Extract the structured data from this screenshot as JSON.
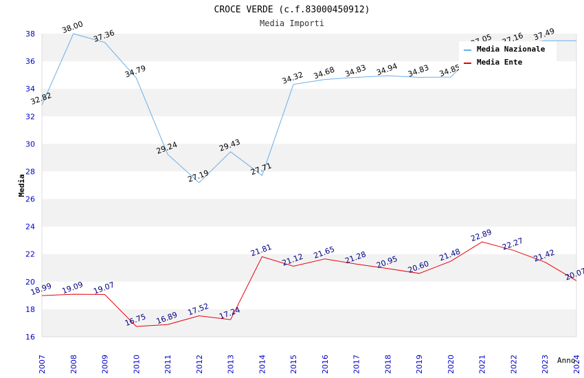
{
  "chart_data": {
    "type": "line",
    "title": "CROCE VERDE (c.f.83000450912)",
    "subtitle": "Media Importi",
    "xlabel": "Anno",
    "ylabel": "Media",
    "ylim": [
      16,
      38
    ],
    "yticks": [
      "16",
      "18",
      "20",
      "22",
      "24",
      "26",
      "28",
      "30",
      "32",
      "34",
      "36",
      "38"
    ],
    "x": [
      "2007",
      "2008",
      "2009",
      "2010",
      "2011",
      "2012",
      "2013",
      "2014",
      "2015",
      "2016",
      "2017",
      "2018",
      "2019",
      "2020",
      "2021",
      "2022",
      "2023",
      "2024"
    ],
    "grid": "horizontal alternating bands",
    "legend_position": "top-right",
    "series": [
      {
        "name": "Media Nazionale",
        "color": "#6aaee8",
        "label_color": "#000000",
        "values": [
          32.82,
          38.0,
          37.36,
          34.79,
          29.24,
          27.19,
          29.43,
          27.71,
          34.32,
          34.68,
          34.83,
          34.94,
          34.83,
          34.85,
          37.05,
          37.16,
          37.49,
          37.49
        ],
        "labels": [
          "32.82",
          "38.00",
          "37.36",
          "34.79",
          "29.24",
          "27.19",
          "29.43",
          "27.71",
          "34.32",
          "34.68",
          "34.83",
          "34.94",
          "34.83",
          "34.85",
          "37.05",
          "37.16",
          "37.49",
          ""
        ]
      },
      {
        "name": "Media Ente",
        "color": "#e8000b",
        "label_color": "#000080",
        "values": [
          18.99,
          19.09,
          19.07,
          16.75,
          16.89,
          17.52,
          17.24,
          21.81,
          21.12,
          21.65,
          21.28,
          20.95,
          20.6,
          21.48,
          22.89,
          22.27,
          21.42,
          20.07
        ],
        "labels": [
          "18.99",
          "19.09",
          "19.07",
          "16.75",
          "16.89",
          "17.52",
          "17.24",
          "21.81",
          "21.12",
          "21.65",
          "21.28",
          "20.95",
          "20.60",
          "21.48",
          "22.89",
          "22.27",
          "21.42",
          "20.07"
        ]
      }
    ],
    "colors": {
      "axis_text": "#0000cc",
      "band": "#f2f2f2",
      "axis_line": "#dddddd"
    }
  }
}
